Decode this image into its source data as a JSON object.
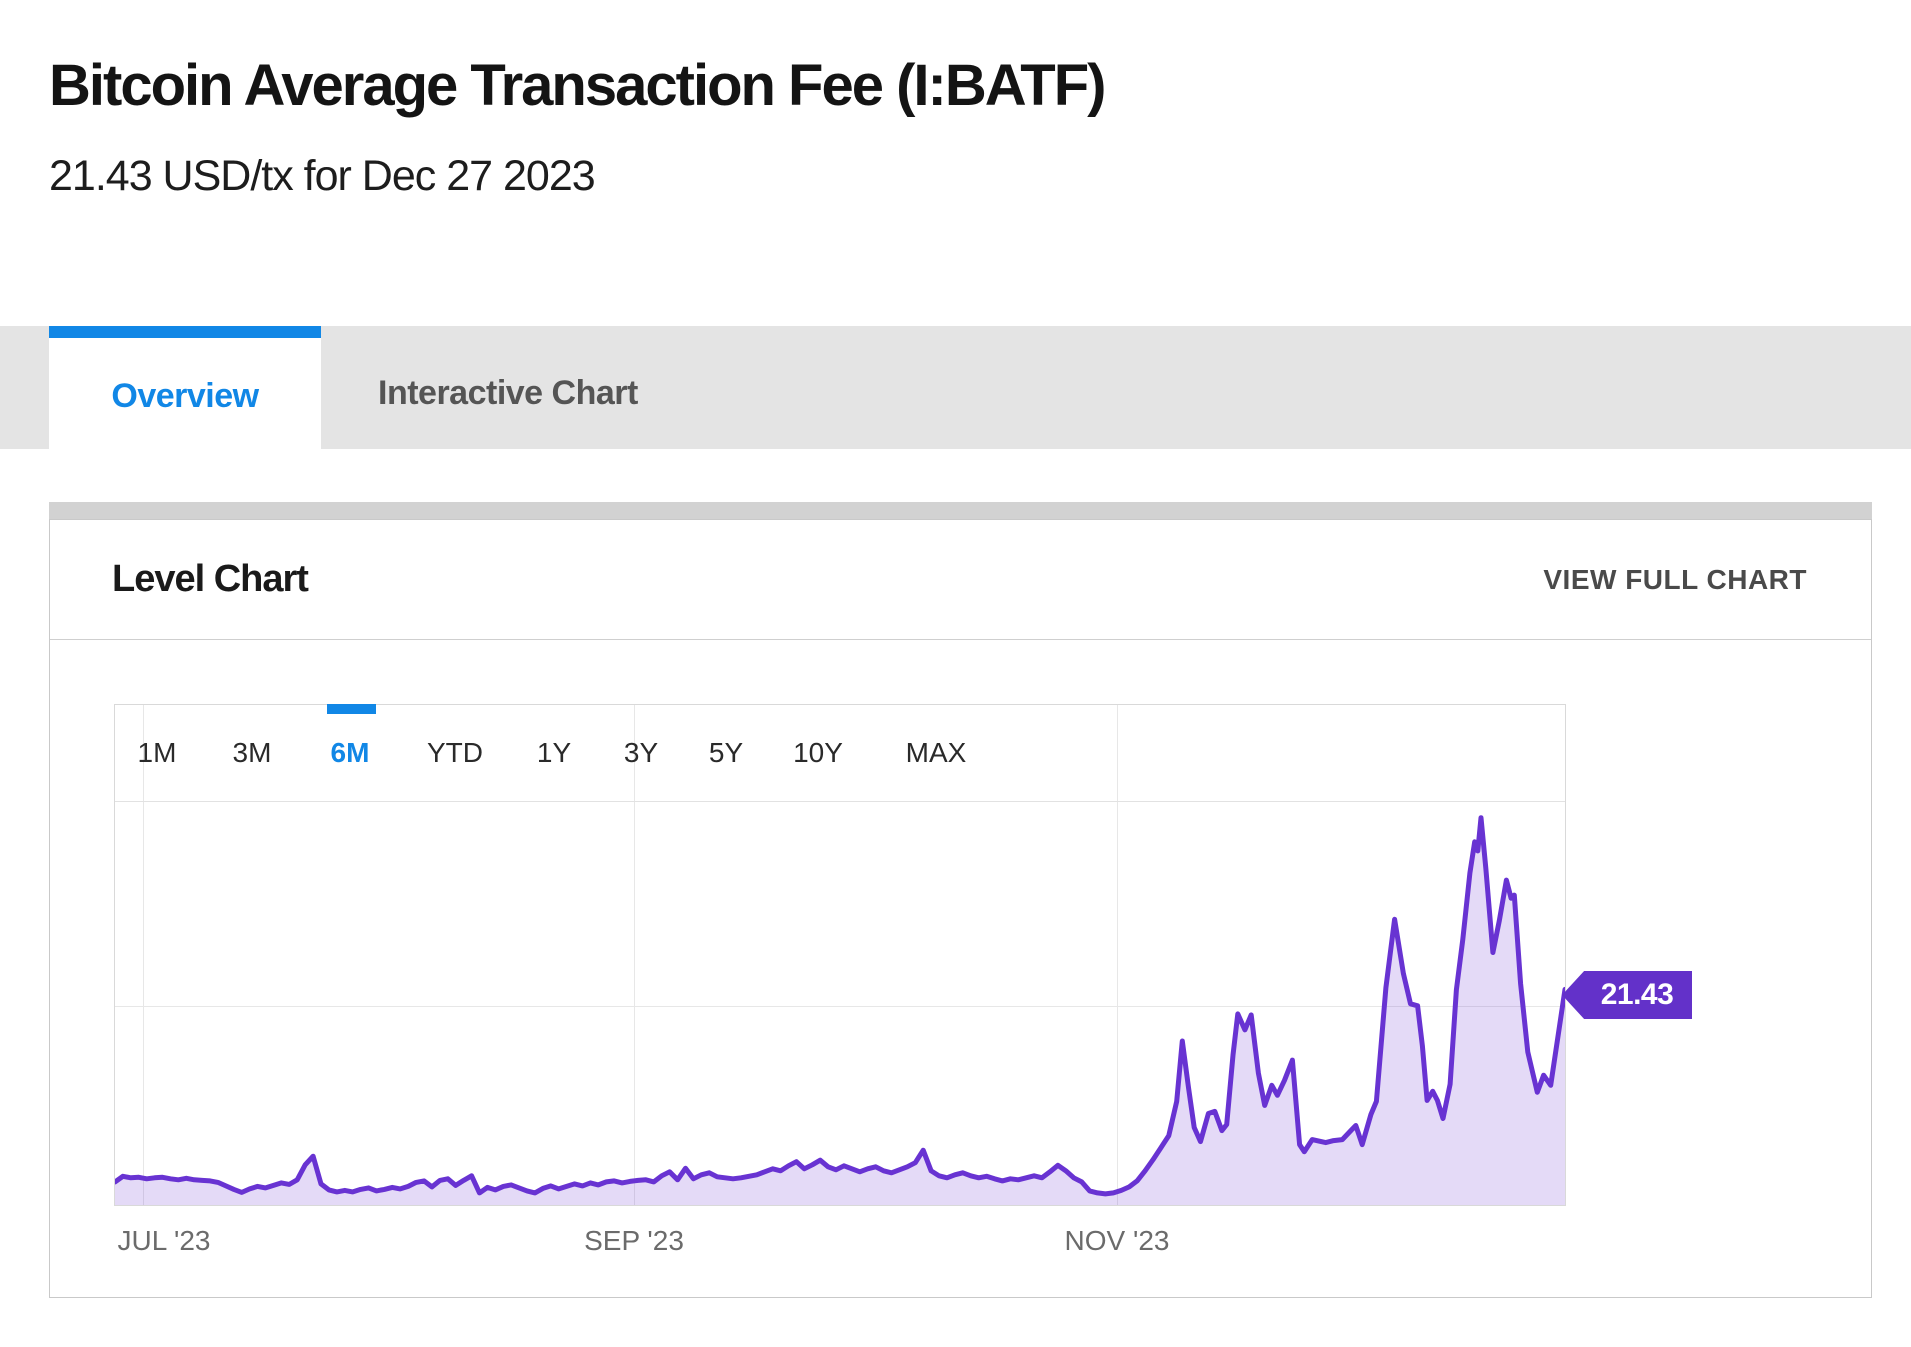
{
  "page": {
    "title": "Bitcoin Average Transaction Fee (I:BATF)",
    "subtitle": "21.43 USD/tx for Dec 27 2023"
  },
  "tabs": [
    {
      "label": "Overview",
      "active": true
    },
    {
      "label": "Interactive Chart",
      "active": false
    }
  ],
  "panel": {
    "title": "Level Chart",
    "action_label": "VIEW FULL CHART"
  },
  "range_selector": {
    "options": [
      "1M",
      "3M",
      "6M",
      "YTD",
      "1Y",
      "3Y",
      "5Y",
      "10Y",
      "MAX"
    ],
    "selected": "6M"
  },
  "colors": {
    "accent_blue": "#1187e6",
    "series_line": "#6833d2",
    "series_fill": "rgba(104,51,210,0.18)",
    "value_tag": "#6331c9",
    "tab_strip_bg": "#e4e4e4",
    "gridline": "#e7e7e7"
  },
  "chart_data": {
    "type": "area",
    "title": "Level Chart",
    "series_name": "Bitcoin Average Transaction Fee",
    "unit": "USD/tx",
    "x_range": [
      "2023-06-27",
      "2023-12-27"
    ],
    "x_days_span": 183,
    "x_tick_labels": [
      "JUL '23",
      "SEP '23",
      "NOV '23"
    ],
    "x_tick_days": [
      4,
      66,
      127
    ],
    "ylim": [
      0,
      49.7
    ],
    "y_gridline_values": [
      20,
      40
    ],
    "grid": true,
    "legend": false,
    "last_value": 21.43,
    "last_value_label": "21.43",
    "last_value_date": "Dec 27 2023",
    "points_format": [
      "days_since_2023_06_27",
      "usd_per_tx"
    ],
    "points": [
      [
        0,
        2.3
      ],
      [
        1,
        2.85
      ],
      [
        2,
        2.7
      ],
      [
        3,
        2.75
      ],
      [
        4,
        2.6
      ],
      [
        5,
        2.7
      ],
      [
        6,
        2.75
      ],
      [
        7,
        2.6
      ],
      [
        8,
        2.5
      ],
      [
        9,
        2.65
      ],
      [
        10,
        2.5
      ],
      [
        11,
        2.45
      ],
      [
        12,
        2.4
      ],
      [
        13,
        2.25
      ],
      [
        14,
        1.9
      ],
      [
        15,
        1.55
      ],
      [
        16,
        1.25
      ],
      [
        17,
        1.6
      ],
      [
        18,
        1.85
      ],
      [
        19,
        1.7
      ],
      [
        20,
        1.95
      ],
      [
        21,
        2.2
      ],
      [
        22,
        2.05
      ],
      [
        23,
        2.5
      ],
      [
        24,
        4.0
      ],
      [
        25,
        4.85
      ],
      [
        26,
        2.1
      ],
      [
        27,
        1.5
      ],
      [
        28,
        1.3
      ],
      [
        29,
        1.45
      ],
      [
        30,
        1.3
      ],
      [
        31,
        1.55
      ],
      [
        32,
        1.7
      ],
      [
        33,
        1.4
      ],
      [
        34,
        1.55
      ],
      [
        35,
        1.75
      ],
      [
        36,
        1.6
      ],
      [
        37,
        1.85
      ],
      [
        38,
        2.25
      ],
      [
        39,
        2.4
      ],
      [
        40,
        1.8
      ],
      [
        41,
        2.45
      ],
      [
        42,
        2.6
      ],
      [
        43,
        1.95
      ],
      [
        44,
        2.45
      ],
      [
        45,
        2.9
      ],
      [
        46,
        1.2
      ],
      [
        47,
        1.75
      ],
      [
        48,
        1.5
      ],
      [
        49,
        1.85
      ],
      [
        50,
        2.0
      ],
      [
        51,
        1.7
      ],
      [
        52,
        1.4
      ],
      [
        53,
        1.2
      ],
      [
        54,
        1.65
      ],
      [
        55,
        1.9
      ],
      [
        56,
        1.6
      ],
      [
        57,
        1.85
      ],
      [
        58,
        2.1
      ],
      [
        59,
        1.9
      ],
      [
        60,
        2.2
      ],
      [
        61,
        2.0
      ],
      [
        62,
        2.3
      ],
      [
        63,
        2.4
      ],
      [
        64,
        2.2
      ],
      [
        65,
        2.35
      ],
      [
        66,
        2.45
      ],
      [
        67,
        2.5
      ],
      [
        68,
        2.3
      ],
      [
        69,
        2.9
      ],
      [
        70,
        3.3
      ],
      [
        71,
        2.5
      ],
      [
        72,
        3.65
      ],
      [
        73,
        2.6
      ],
      [
        74,
        3.0
      ],
      [
        75,
        3.2
      ],
      [
        76,
        2.8
      ],
      [
        77,
        2.7
      ],
      [
        78,
        2.6
      ],
      [
        79,
        2.7
      ],
      [
        80,
        2.85
      ],
      [
        81,
        3.0
      ],
      [
        82,
        3.3
      ],
      [
        83,
        3.6
      ],
      [
        84,
        3.4
      ],
      [
        85,
        3.9
      ],
      [
        86,
        4.3
      ],
      [
        87,
        3.6
      ],
      [
        88,
        4.0
      ],
      [
        89,
        4.45
      ],
      [
        90,
        3.8
      ],
      [
        91,
        3.5
      ],
      [
        92,
        3.9
      ],
      [
        93,
        3.6
      ],
      [
        94,
        3.3
      ],
      [
        95,
        3.6
      ],
      [
        96,
        3.8
      ],
      [
        97,
        3.4
      ],
      [
        98,
        3.2
      ],
      [
        99,
        3.5
      ],
      [
        100,
        3.8
      ],
      [
        101,
        4.2
      ],
      [
        102,
        5.45
      ],
      [
        103,
        3.4
      ],
      [
        104,
        2.9
      ],
      [
        105,
        2.7
      ],
      [
        106,
        3.0
      ],
      [
        107,
        3.2
      ],
      [
        108,
        2.9
      ],
      [
        109,
        2.7
      ],
      [
        110,
        2.85
      ],
      [
        111,
        2.6
      ],
      [
        112,
        2.4
      ],
      [
        113,
        2.6
      ],
      [
        114,
        2.5
      ],
      [
        115,
        2.7
      ],
      [
        116,
        2.9
      ],
      [
        117,
        2.7
      ],
      [
        118,
        3.3
      ],
      [
        119,
        3.95
      ],
      [
        120,
        3.4
      ],
      [
        121,
        2.7
      ],
      [
        122,
        2.3
      ],
      [
        123,
        1.4
      ],
      [
        124,
        1.2
      ],
      [
        125,
        1.1
      ],
      [
        126,
        1.2
      ],
      [
        127,
        1.45
      ],
      [
        128,
        1.8
      ],
      [
        129,
        2.4
      ],
      [
        130,
        3.4
      ],
      [
        131,
        4.5
      ],
      [
        132,
        5.7
      ],
      [
        133,
        6.9
      ],
      [
        134,
        10.3
      ],
      [
        134.7,
        16.3
      ],
      [
        135.5,
        11.6
      ],
      [
        136.2,
        7.7
      ],
      [
        137,
        6.3
      ],
      [
        138,
        9.1
      ],
      [
        138.8,
        9.3
      ],
      [
        139.7,
        7.4
      ],
      [
        140.3,
        8.0
      ],
      [
        141.1,
        14.9
      ],
      [
        141.7,
        19.0
      ],
      [
        142.6,
        17.4
      ],
      [
        143.4,
        18.9
      ],
      [
        144.3,
        13.1
      ],
      [
        145.1,
        9.9
      ],
      [
        146,
        11.9
      ],
      [
        146.7,
        10.9
      ],
      [
        147.6,
        12.4
      ],
      [
        148.6,
        14.4
      ],
      [
        149.5,
        6.0
      ],
      [
        150.1,
        5.3
      ],
      [
        151.1,
        6.5
      ],
      [
        152.8,
        6.2
      ],
      [
        153.8,
        6.4
      ],
      [
        154.9,
        6.5
      ],
      [
        156.1,
        7.5
      ],
      [
        156.6,
        7.9
      ],
      [
        157.4,
        6.0
      ],
      [
        158.5,
        9.0
      ],
      [
        159.2,
        10.3
      ],
      [
        160.4,
        21.6
      ],
      [
        161.5,
        28.4
      ],
      [
        162.6,
        23.0
      ],
      [
        163.5,
        20.0
      ],
      [
        164.4,
        19.8
      ],
      [
        165,
        15.8
      ],
      [
        165.6,
        10.4
      ],
      [
        166.3,
        11.3
      ],
      [
        166.9,
        10.4
      ],
      [
        167.6,
        8.6
      ],
      [
        168.5,
        12.0
      ],
      [
        169.3,
        21.4
      ],
      [
        170.1,
        26.4
      ],
      [
        171,
        33.0
      ],
      [
        171.6,
        36.1
      ],
      [
        172,
        35.2
      ],
      [
        172.4,
        38.5
      ],
      [
        173,
        33.5
      ],
      [
        173.9,
        25.1
      ],
      [
        174.7,
        28.2
      ],
      [
        175.6,
        32.3
      ],
      [
        176.2,
        30.5
      ],
      [
        176.6,
        30.8
      ],
      [
        177.4,
        22.0
      ],
      [
        178.3,
        15.2
      ],
      [
        179.5,
        11.2
      ],
      [
        180.3,
        12.9
      ],
      [
        181.2,
        11.9
      ],
      [
        183,
        21.43
      ]
    ]
  }
}
